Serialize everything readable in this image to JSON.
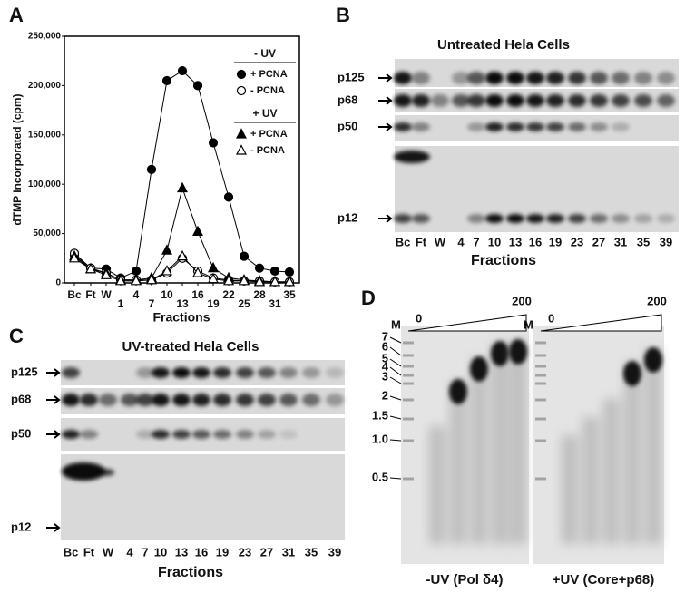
{
  "chart_data": {
    "type": "line",
    "panel": "A",
    "ylabel": "dTMP Incorporated (cpm)",
    "xlabel": "Fractions",
    "categories": [
      "Bc",
      "Ft",
      "W",
      "1",
      "4",
      "7",
      "10",
      "13",
      "16",
      "19",
      "22",
      "25",
      "28",
      "31",
      "35"
    ],
    "ylim": [
      0,
      250000
    ],
    "yticks": [
      0,
      {
        "value": 50000,
        "label": "50,000"
      },
      {
        "value": 100000,
        "label": "100,000"
      },
      {
        "value": 150000,
        "label": "150,000"
      },
      {
        "value": 200000,
        "label": "200,000"
      },
      {
        "value": 250000,
        "label": "250,000"
      }
    ],
    "legend_titles": [
      "- UV",
      "+ UV"
    ],
    "series": [
      {
        "name": "+ PCNA",
        "color": "#000000",
        "marker": "circle",
        "filled": true,
        "values": [
          28000,
          15000,
          14000,
          5000,
          12000,
          115000,
          205000,
          215000,
          200000,
          142000,
          87000,
          27000,
          15000,
          12000,
          11000
        ]
      },
      {
        "name": "- PCNA",
        "color": "#000000",
        "marker": "circle",
        "filled": false,
        "values": [
          30000,
          15000,
          10000,
          3000,
          3000,
          3000,
          10000,
          25000,
          12000,
          5000,
          3000,
          2000,
          2000,
          1000,
          1000
        ]
      },
      {
        "name": "+ PCNA",
        "color": "#000000",
        "marker": "triangle",
        "filled": true,
        "values": [
          27000,
          14000,
          10000,
          3000,
          3000,
          5000,
          33000,
          96000,
          52000,
          15000,
          5000,
          3000,
          2000,
          1000,
          1000
        ]
      },
      {
        "name": "- PCNA",
        "color": "#000000",
        "marker": "triangle",
        "filled": false,
        "values": [
          25000,
          14000,
          8000,
          2000,
          2000,
          3000,
          12000,
          27000,
          10000,
          4000,
          2000,
          2000,
          1000,
          1000,
          1000
        ]
      }
    ]
  },
  "panels": {
    "b": {
      "letter": "B",
      "title": "Untreated Hela Cells",
      "bands": [
        "p125",
        "p68",
        "p50",
        "p12"
      ],
      "lanes": [
        "Bc",
        "Ft",
        "W",
        "4",
        "7",
        "10",
        "13",
        "16",
        "19",
        "23",
        "27",
        "31",
        "35",
        "39"
      ],
      "xlabel": "Fractions"
    },
    "c": {
      "letter": "C",
      "title": "UV-treated Hela Cells",
      "bands": [
        "p125",
        "p68",
        "p50",
        "p12"
      ],
      "lanes": [
        "Bc",
        "Ft",
        "W",
        "4",
        "7",
        "10",
        "13",
        "16",
        "19",
        "23",
        "27",
        "31",
        "35",
        "39"
      ],
      "xlabel": "Fractions"
    },
    "d": {
      "letter": "D",
      "marker_lane": "M",
      "gradient_start": "0",
      "gradient_end": "200",
      "sizes": [
        "7",
        "6",
        "5",
        "4",
        "3",
        "2",
        "1.5",
        "1.0",
        "0.5"
      ],
      "captions": [
        "-UV (Pol δ4)",
        "+UV (Core+p68)"
      ]
    }
  }
}
